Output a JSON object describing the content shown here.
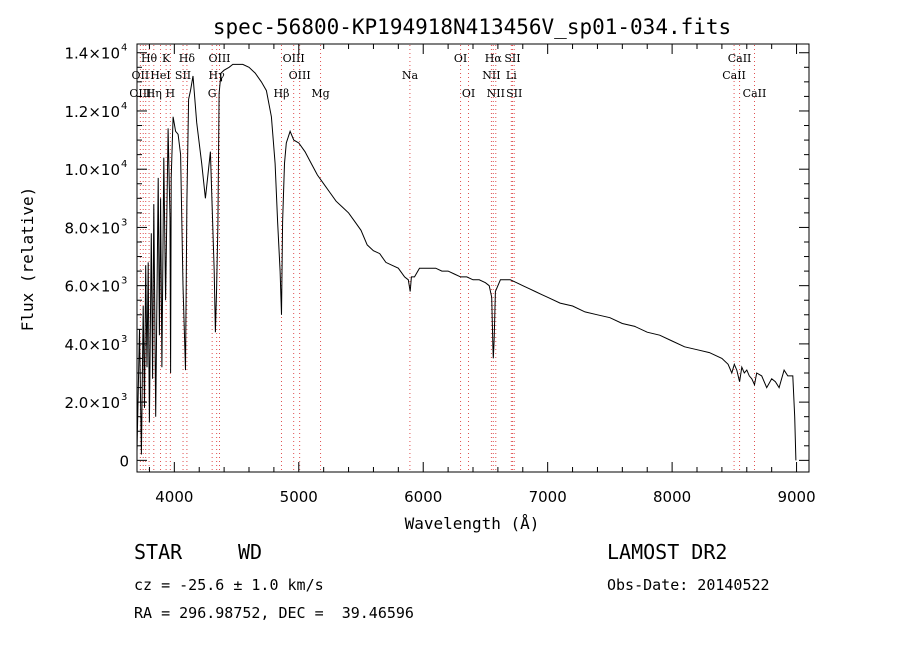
{
  "chart_data": {
    "type": "line",
    "title": "spec-56800-KP194918N413456V_sp01-034.fits",
    "xlabel": "Wavelength (Å)",
    "ylabel": "Flux (relative)",
    "xlim": [
      3700,
      9100
    ],
    "ylim": [
      -400,
      14300
    ],
    "grid": false,
    "x_ticks": [
      {
        "value": 4000,
        "label": "4000"
      },
      {
        "value": 5000,
        "label": "5000"
      },
      {
        "value": 6000,
        "label": "6000"
      },
      {
        "value": 7000,
        "label": "7000"
      },
      {
        "value": 8000,
        "label": "8000"
      },
      {
        "value": 9000,
        "label": "9000"
      }
    ],
    "y_ticks": [
      {
        "value": 0,
        "mantissa": "0",
        "exponent": ""
      },
      {
        "value": 2000,
        "mantissa": "2.0×10",
        "exponent": "3"
      },
      {
        "value": 4000,
        "mantissa": "4.0×10",
        "exponent": "3"
      },
      {
        "value": 6000,
        "mantissa": "6.0×10",
        "exponent": "3"
      },
      {
        "value": 8000,
        "mantissa": "8.0×10",
        "exponent": "3"
      },
      {
        "value": 10000,
        "mantissa": "1.0×10",
        "exponent": "4"
      },
      {
        "value": 12000,
        "mantissa": "1.2×10",
        "exponent": "4"
      },
      {
        "value": 14000,
        "mantissa": "1.4×10",
        "exponent": "4"
      }
    ],
    "series": [
      {
        "x": [
          3700,
          3720,
          3735,
          3750,
          3760,
          3770,
          3780,
          3790,
          3800,
          3815,
          3825,
          3835,
          3850,
          3870,
          3880,
          3890,
          3900,
          3915,
          3930,
          3950,
          3965,
          3970,
          3975,
          3990,
          4010,
          4030,
          4050,
          4070,
          4090,
          4101,
          4115,
          4130,
          4150,
          4180,
          4220,
          4250,
          4290,
          4320,
          4330,
          4340,
          4350,
          4360,
          4375,
          4400,
          4440,
          4470,
          4500,
          4550,
          4600,
          4650,
          4700,
          4740,
          4780,
          4810,
          4830,
          4850,
          4861,
          4870,
          4885,
          4900,
          4930,
          4960,
          5000,
          5050,
          5100,
          5150,
          5200,
          5250,
          5300,
          5350,
          5400,
          5450,
          5500,
          5550,
          5600,
          5650,
          5700,
          5750,
          5800,
          5850,
          5880,
          5895,
          5905,
          5930,
          5970,
          6050,
          6100,
          6150,
          6200,
          6250,
          6300,
          6350,
          6400,
          6450,
          6500,
          6530,
          6550,
          6560,
          6563,
          6570,
          6580,
          6600,
          6620,
          6650,
          6700,
          6750,
          6800,
          6850,
          6900,
          6950,
          7000,
          7100,
          7200,
          7300,
          7400,
          7500,
          7600,
          7700,
          7800,
          7900,
          8000,
          8100,
          8200,
          8300,
          8400,
          8450,
          8480,
          8500,
          8520,
          8542,
          8560,
          8580,
          8600,
          8620,
          8640,
          8662,
          8680,
          8720,
          8760,
          8800,
          8830,
          8860,
          8900,
          8930,
          8950,
          8970,
          8985,
          8995
        ],
        "y": [
          300,
          4500,
          200,
          5300,
          1800,
          6700,
          3200,
          6800,
          1300,
          7800,
          2800,
          8800,
          1500,
          9700,
          4300,
          9000,
          3200,
          10400,
          5500,
          11400,
          8300,
          3000,
          9700,
          11800,
          11300,
          11200,
          10500,
          6000,
          3100,
          8900,
          12400,
          12700,
          13200,
          11600,
          10200,
          9000,
          10600,
          6500,
          4400,
          5900,
          8100,
          12600,
          13300,
          13400,
          13500,
          13600,
          13600,
          13600,
          13500,
          13300,
          13000,
          12700,
          11800,
          10200,
          8200,
          6500,
          5000,
          8200,
          10200,
          10900,
          11300,
          11000,
          10900,
          10600,
          10200,
          9800,
          9500,
          9200,
          8900,
          8700,
          8500,
          8200,
          7900,
          7400,
          7200,
          7100,
          6800,
          6700,
          6600,
          6300,
          6200,
          5800,
          6300,
          6300,
          6600,
          6600,
          6600,
          6500,
          6500,
          6400,
          6300,
          6300,
          6200,
          6200,
          6100,
          6000,
          5600,
          3900,
          3500,
          4200,
          5800,
          6000,
          6200,
          6200,
          6200,
          6100,
          6000,
          5900,
          5800,
          5700,
          5600,
          5400,
          5300,
          5100,
          5000,
          4900,
          4700,
          4600,
          4400,
          4300,
          4100,
          3900,
          3800,
          3700,
          3500,
          3300,
          3000,
          3300,
          3100,
          2700,
          3200,
          3000,
          3100,
          2900,
          2800,
          2600,
          3000,
          2900,
          2500,
          2800,
          2700,
          2500,
          3100,
          2900,
          2900,
          2900,
          1500,
          0
        ]
      }
    ],
    "line_labels": [
      {
        "text": "Hθ",
        "x": 3797,
        "row": 1
      },
      {
        "text": "K",
        "x": 3934,
        "row": 1
      },
      {
        "text": "Hδ",
        "x": 4101,
        "row": 1
      },
      {
        "text": "OIII",
        "x": 4363,
        "row": 1
      },
      {
        "text": "OIII",
        "x": 4959,
        "row": 1
      },
      {
        "text": "OI",
        "x": 6300,
        "row": 1
      },
      {
        "text": "Hα",
        "x": 6563,
        "row": 1
      },
      {
        "text": "SII",
        "x": 6717,
        "row": 1
      },
      {
        "text": "CaII",
        "x": 8542,
        "row": 1
      },
      {
        "text": "OII",
        "x": 3727,
        "row": 2
      },
      {
        "text": "HeI",
        "x": 3889,
        "row": 2
      },
      {
        "text": "SII",
        "x": 4070,
        "row": 2
      },
      {
        "text": "Hγ",
        "x": 4340,
        "row": 2
      },
      {
        "text": "OIII",
        "x": 5007,
        "row": 2
      },
      {
        "text": "Na",
        "x": 5893,
        "row": 2
      },
      {
        "text": "NII",
        "x": 6548,
        "row": 2
      },
      {
        "text": "Li",
        "x": 6708,
        "row": 2
      },
      {
        "text": "CaII",
        "x": 8498,
        "row": 2
      },
      {
        "text": "OIII",
        "x": 3727,
        "row": 3
      },
      {
        "text": "Hη",
        "x": 3835,
        "row": 3
      },
      {
        "text": "H",
        "x": 3968,
        "row": 3
      },
      {
        "text": "G",
        "x": 4304,
        "row": 3
      },
      {
        "text": "Hβ",
        "x": 4861,
        "row": 3
      },
      {
        "text": "Mg",
        "x": 5175,
        "row": 3
      },
      {
        "text": "OI",
        "x": 6364,
        "row": 3
      },
      {
        "text": "NII",
        "x": 6583,
        "row": 3
      },
      {
        "text": "SII",
        "x": 6731,
        "row": 3
      },
      {
        "text": "CaII",
        "x": 8662,
        "row": 3
      }
    ],
    "line_marker_x": [
      3727,
      3750,
      3770,
      3797,
      3835,
      3889,
      3934,
      3968,
      4070,
      4101,
      4304,
      4340,
      4363,
      4861,
      4959,
      5007,
      5175,
      5893,
      6300,
      6364,
      6548,
      6563,
      6583,
      6708,
      6717,
      6731,
      8498,
      8542,
      8662
    ],
    "colors": {
      "spectrum": "#000000",
      "markers": "#e05050",
      "axes": "#000000"
    }
  },
  "footer": {
    "object_class": "STAR",
    "subclass": "WD",
    "survey": "LAMOST DR2",
    "cz": "cz = -25.6 ± 1.0 km/s",
    "obs_date": "Obs-Date: 20140522",
    "coords": "RA = 296.98752, DEC =  39.46596"
  }
}
